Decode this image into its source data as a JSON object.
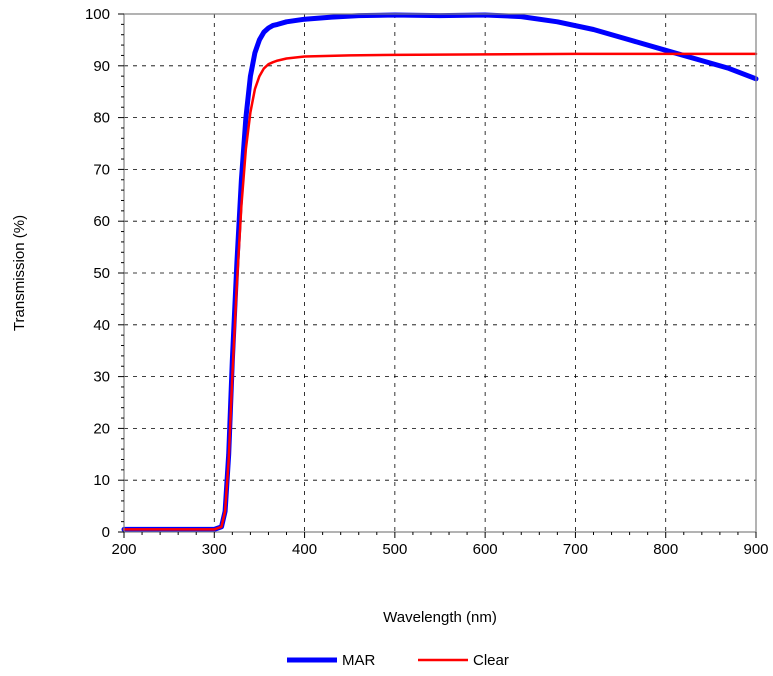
{
  "chart_data": {
    "type": "line",
    "title": "",
    "xlabel": "Wavelength (nm)",
    "ylabel": "Transmission (%)",
    "xlim": [
      200,
      900
    ],
    "ylim": [
      0,
      100
    ],
    "xticks": [
      200,
      300,
      400,
      500,
      600,
      700,
      800,
      900
    ],
    "yticks": [
      0,
      10,
      20,
      30,
      40,
      50,
      60,
      70,
      80,
      90,
      100
    ],
    "xtick_labels": [
      "200",
      "300",
      "400",
      "500",
      "600",
      "700",
      "800",
      "900"
    ],
    "ytick_labels": [
      "0",
      "10",
      "20",
      "30",
      "40",
      "50",
      "60",
      "70",
      "80",
      "90",
      "100"
    ],
    "grid": true,
    "legend_position": "bottom-center",
    "series": [
      {
        "name": "MAR",
        "color": "#0000ff",
        "x": [
          200,
          300,
          308,
          312,
          316,
          320,
          325,
          330,
          335,
          340,
          345,
          350,
          355,
          360,
          365,
          370,
          380,
          400,
          430,
          460,
          500,
          550,
          600,
          640,
          680,
          720,
          760,
          800,
          840,
          870,
          900
        ],
        "y": [
          0.5,
          0.5,
          1,
          4,
          15,
          33,
          52,
          68,
          80,
          88,
          92.5,
          95,
          96.5,
          97.3,
          97.8,
          98,
          98.5,
          99,
          99.4,
          99.7,
          99.8,
          99.7,
          99.8,
          99.5,
          98.5,
          97,
          95,
          93,
          91,
          89.5,
          87.5
        ]
      },
      {
        "name": "Clear",
        "color": "#ff0000",
        "x": [
          200,
          300,
          308,
          312,
          316,
          320,
          325,
          330,
          335,
          340,
          345,
          350,
          355,
          360,
          365,
          370,
          380,
          400,
          450,
          500,
          600,
          700,
          800,
          900
        ],
        "y": [
          0.5,
          0.5,
          1,
          4,
          14,
          30,
          48,
          63,
          74,
          81,
          85.5,
          88,
          89.5,
          90.3,
          90.7,
          91,
          91.4,
          91.8,
          92,
          92.1,
          92.2,
          92.3,
          92.3,
          92.3
        ]
      }
    ]
  }
}
